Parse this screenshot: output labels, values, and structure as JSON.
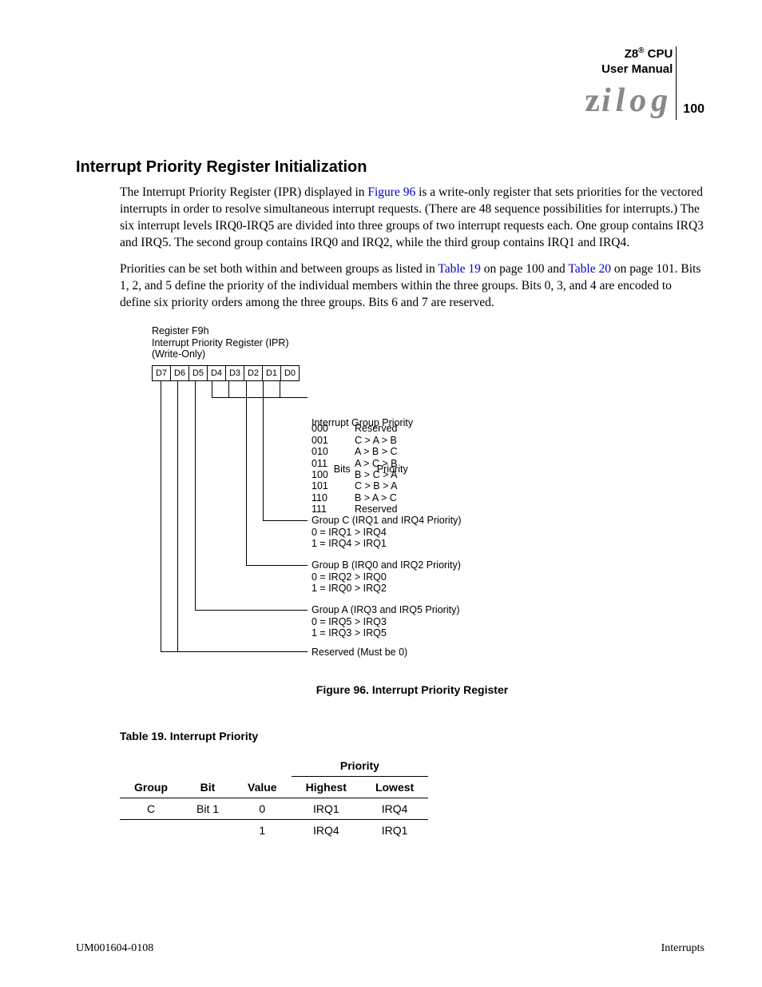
{
  "header": {
    "product": "Z8",
    "reg": "®",
    "cpu": " CPU",
    "subtitle": "User Manual",
    "logo": "zilog",
    "page_number": "100"
  },
  "section_title": "Interrupt Priority Register Initialization",
  "para1_a": "The Interrupt Priority Register (IPR) displayed in ",
  "para1_link1": "Figure 96",
  "para1_b": " is a write-only register that sets priorities for the vectored interrupts in order to resolve simultaneous interrupt requests. (There are 48 sequence possibilities for interrupts.) The six interrupt levels IRQ0-IRQ5 are divided into three groups of two interrupt requests each. One group contains IRQ3 and IRQ5. The second group contains IRQ0 and IRQ2, while the third group contains IRQ1 and IRQ4.",
  "para2_a": "Priorities can be set both within and between groups as listed in ",
  "para2_link1": "Table 19",
  "para2_b": " on page 100 and ",
  "para2_link2": "Table 20",
  "para2_c": " on page 101. Bits 1, 2, and 5 define the priority of the individual members within the three groups. Bits 0, 3, and 4 are encoded to define six priority orders among the three groups. Bits 6 and 7 are reserved.",
  "figure": {
    "reg_label_l1": "Register F9h",
    "reg_label_l2": "Interrupt Priority Register (IPR)",
    "reg_label_l3": "(Write-Only)",
    "bits": [
      "D7",
      "D6",
      "D5",
      "D4",
      "D3",
      "D2",
      "D1",
      "D0"
    ],
    "group_prio_title": "Interrupt Group Priority",
    "group_prio_head_bits": "Bits",
    "group_prio_head_pri": "Priority",
    "group_prio_rows": [
      [
        "000",
        "Reserved"
      ],
      [
        "001",
        "C > A > B"
      ],
      [
        "010",
        "A > B > C"
      ],
      [
        "011",
        "A > C > B"
      ],
      [
        "100",
        "B > C > A"
      ],
      [
        "101",
        "C > B > A"
      ],
      [
        "110",
        "B > A > C"
      ],
      [
        "111",
        "Reserved"
      ]
    ],
    "groupC": "Group C (IRQ1 and IRQ4 Priority)\n0 = IRQ1 > IRQ4\n1 = IRQ4 > IRQ1",
    "groupB": "Group B (IRQ0 and IRQ2 Priority)\n0 = IRQ2 > IRQ0\n1 = IRQ0 > IRQ2",
    "groupA": "Group A (IRQ3 and IRQ5 Priority)\n0 = IRQ5 > IRQ3\n1 = IRQ3 > IRQ5",
    "reserved": "Reserved (Must be 0)",
    "caption": "Figure 96. Interrupt Priority Register"
  },
  "table": {
    "title": "Table 19. Interrupt Priority",
    "head_priority": "Priority",
    "head_group": "Group",
    "head_bit": "Bit",
    "head_value": "Value",
    "head_highest": "Highest",
    "head_lowest": "Lowest",
    "rows": [
      {
        "group": "C",
        "bit": "Bit 1",
        "value": "0",
        "highest": "IRQ1",
        "lowest": "IRQ4"
      },
      {
        "group": "",
        "bit": "",
        "value": "1",
        "highest": "IRQ4",
        "lowest": "IRQ1"
      }
    ]
  },
  "footer": {
    "left": "UM001604-0108",
    "right": "Interrupts"
  }
}
